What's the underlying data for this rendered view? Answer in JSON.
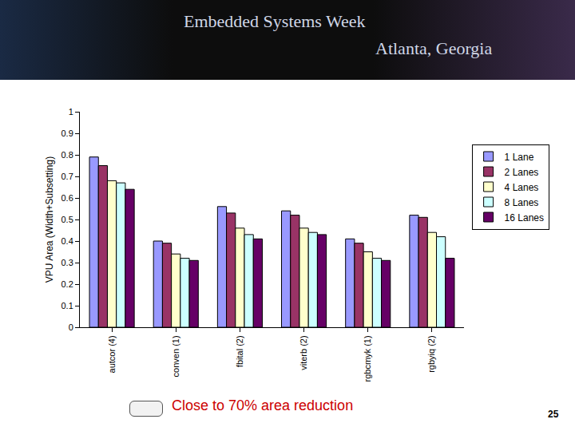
{
  "header": {
    "event": "Embedded Systems Week",
    "place": "Atlanta, Georgia"
  },
  "chart_data": {
    "type": "bar",
    "y_label": "VPU Area (Width+Subsetting)",
    "categories": [
      "autcor (4)",
      "conven (1)",
      "fbital (2)",
      "viterb (2)",
      "rgbcmyk (1)",
      "rgbyiq (2)"
    ],
    "series": [
      {
        "name": "1 Lane",
        "color": "#9999ff",
        "values": [
          0.79,
          0.4,
          0.56,
          0.54,
          0.41,
          0.52
        ]
      },
      {
        "name": "2 Lanes",
        "color": "#993366",
        "values": [
          0.75,
          0.39,
          0.53,
          0.52,
          0.39,
          0.51
        ]
      },
      {
        "name": "4 Lanes",
        "color": "#ffffcc",
        "values": [
          0.68,
          0.34,
          0.46,
          0.46,
          0.35,
          0.44
        ]
      },
      {
        "name": "8 Lanes",
        "color": "#ccffff",
        "values": [
          0.67,
          0.32,
          0.43,
          0.44,
          0.32,
          0.42
        ]
      },
      {
        "name": "16 Lanes",
        "color": "#660066",
        "values": [
          0.64,
          0.31,
          0.41,
          0.43,
          0.31,
          0.32
        ]
      }
    ],
    "ylim": [
      0,
      1
    ],
    "yticks": [
      0,
      0.1,
      0.2,
      0.3,
      0.4,
      0.5,
      0.6,
      0.7,
      0.8,
      0.9,
      1
    ],
    "grid": false,
    "legend": "right",
    "annotations": [
      "Close to 70% area reduction"
    ],
    "page_number": "25"
  }
}
